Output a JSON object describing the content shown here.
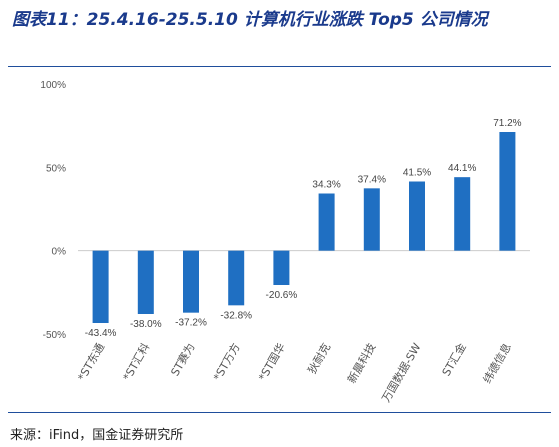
{
  "header": {
    "title": "图表11：25.4.16-25.5.10 计算机行业涨跌 Top5 公司情况"
  },
  "footer": {
    "source": "来源：iFind，国金证券研究所"
  },
  "colors": {
    "bar": "#1f6fc2",
    "rule": "#1f4e9c",
    "title": "#1a3a8c"
  },
  "chart_data": {
    "type": "bar",
    "categories": [
      "*ST东通",
      "*ST汇科",
      "ST赛为",
      "*ST万方",
      "*ST国华",
      "狄耐克",
      "新晨科技",
      "万国数据-SW",
      "ST汇金",
      "纬德信息"
    ],
    "values": [
      -43.4,
      -38.0,
      -37.2,
      -32.8,
      -20.6,
      34.3,
      37.4,
      41.5,
      44.1,
      71.2
    ],
    "data_labels": [
      "-43.4%",
      "-38.0%",
      "-37.2%",
      "-32.8%",
      "-20.6%",
      "34.3%",
      "37.4%",
      "41.5%",
      "44.1%",
      "71.2%"
    ],
    "y_ticks": [
      100,
      50,
      0,
      -50
    ],
    "y_tick_labels": [
      "100%",
      "50%",
      "0%",
      "-50%"
    ],
    "ylim": [
      -50,
      100
    ],
    "grid": false,
    "legend": "none"
  }
}
